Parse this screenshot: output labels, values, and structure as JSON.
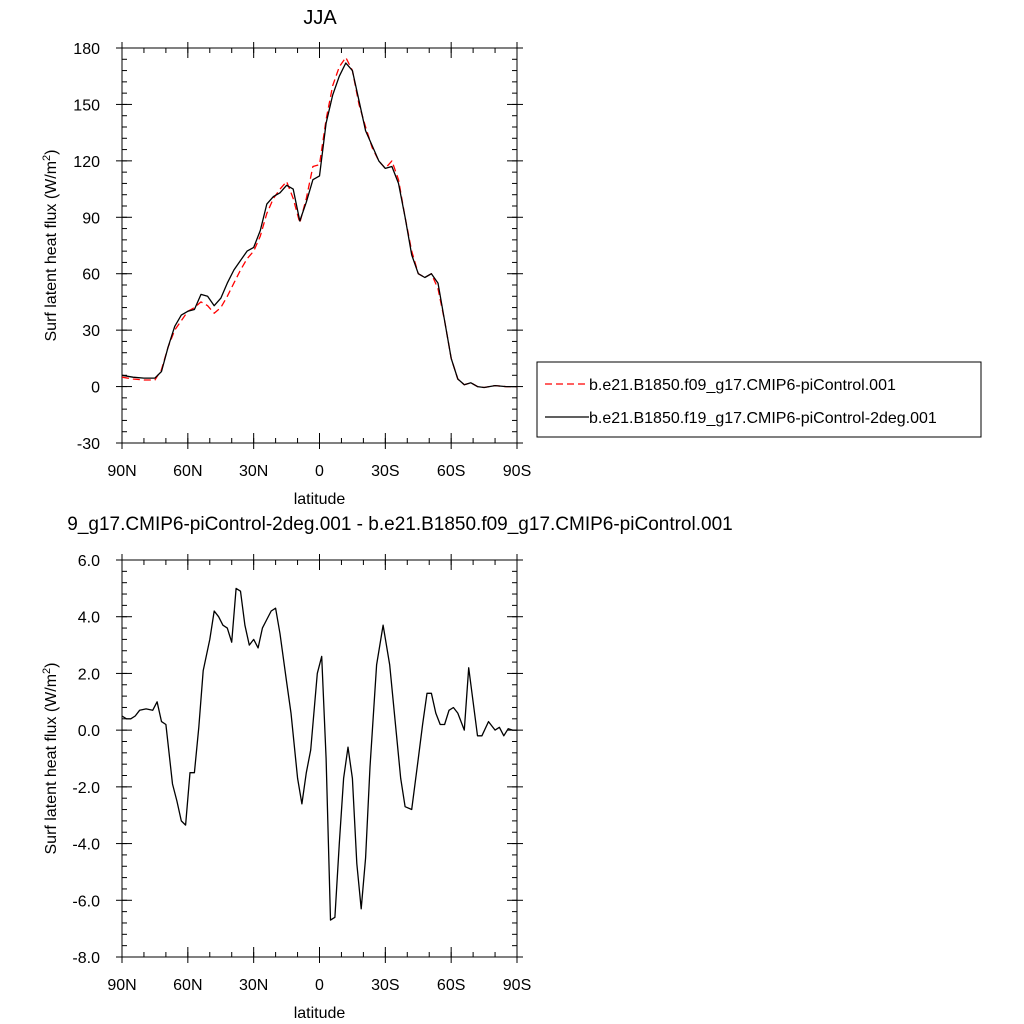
{
  "chart_data": [
    {
      "type": "line",
      "title": "JJA",
      "xlabel": "latitude",
      "ylabel": "Surf latent heat flux (W/m²)",
      "ylabel_text": "Surf latent heat flux (W/m",
      "ylabel_sup": "2",
      "ylabel_close": ")",
      "xlim": [
        90,
        -90
      ],
      "ylim": [
        -30,
        180
      ],
      "xticks": [
        {
          "value": 90,
          "label": "90N"
        },
        {
          "value": 60,
          "label": "60N"
        },
        {
          "value": 30,
          "label": "30N"
        },
        {
          "value": 0,
          "label": "0"
        },
        {
          "value": -30,
          "label": "30S"
        },
        {
          "value": -60,
          "label": "60S"
        },
        {
          "value": -90,
          "label": "90S"
        }
      ],
      "yticks": [
        {
          "value": -30,
          "label": "-30"
        },
        {
          "value": 0,
          "label": "0"
        },
        {
          "value": 30,
          "label": "30"
        },
        {
          "value": 60,
          "label": "60"
        },
        {
          "value": 90,
          "label": "90"
        },
        {
          "value": 120,
          "label": "120"
        },
        {
          "value": 150,
          "label": "150"
        },
        {
          "value": 180,
          "label": "180"
        }
      ],
      "legend_position": "right",
      "series": [
        {
          "name": "b.e21.B1850.f09_g17.CMIP6-piControl.001",
          "color": "#ff0000",
          "dash": true,
          "x": [
            90,
            85,
            80,
            75,
            72,
            69,
            66,
            63,
            60,
            57,
            54,
            51,
            48,
            45,
            42,
            39,
            36,
            33,
            30,
            27,
            24,
            21,
            18,
            15,
            12,
            9,
            6,
            3,
            0,
            -3,
            -6,
            -9,
            -12,
            -15,
            -18,
            -21,
            -24,
            -27,
            -30,
            -33,
            -36,
            -39,
            -42,
            -45,
            -48,
            -51,
            -54,
            -57,
            -60,
            -63,
            -66,
            -69,
            -72,
            -75,
            -80,
            -85,
            -90
          ],
          "y": [
            5,
            4,
            3.5,
            3.5,
            9,
            21,
            30,
            35,
            40,
            42,
            45,
            43,
            39,
            42,
            48,
            55,
            62,
            68,
            72,
            80,
            92,
            100,
            105,
            109,
            100,
            87,
            100,
            117,
            118,
            142,
            160,
            170,
            175,
            168,
            150,
            138,
            127,
            120,
            116,
            120,
            110,
            90,
            72,
            60,
            58,
            60,
            52,
            35,
            15,
            4,
            1,
            2,
            0,
            -0.5,
            0.5,
            0,
            0
          ]
        },
        {
          "name": "b.e21.B1850.f19_g17.CMIP6-piControl-2deg.001",
          "color": "#000000",
          "dash": false,
          "x": [
            90,
            85,
            80,
            75,
            72,
            69,
            66,
            63,
            60,
            57,
            54,
            51,
            48,
            45,
            42,
            39,
            36,
            33,
            30,
            27,
            24,
            21,
            18,
            15,
            12,
            9,
            6,
            3,
            0,
            -3,
            -6,
            -9,
            -12,
            -15,
            -18,
            -21,
            -24,
            -27,
            -30,
            -33,
            -36,
            -39,
            -42,
            -45,
            -48,
            -51,
            -54,
            -57,
            -60,
            -63,
            -66,
            -69,
            -72,
            -75,
            -80,
            -85,
            -90
          ],
          "y": [
            6,
            5,
            4.5,
            4.5,
            8,
            21,
            32,
            38,
            40,
            41,
            49,
            48,
            43,
            47,
            55,
            62,
            67,
            72,
            74,
            83,
            97,
            101,
            103,
            107,
            105,
            88,
            98,
            110,
            112,
            140,
            155,
            165,
            172,
            168,
            152,
            136,
            128,
            120,
            116,
            117,
            108,
            90,
            70,
            60,
            58,
            60,
            55,
            35,
            15,
            4,
            1,
            2,
            0,
            -0.5,
            0.5,
            0,
            0
          ]
        }
      ]
    },
    {
      "type": "line",
      "title": "9_g17.CMIP6-piControl-2deg.001 - b.e21.B1850.f09_g17.CMIP6-piControl.001",
      "xlabel": "latitude",
      "ylabel": "Surf latent heat flux (W/m²)",
      "ylabel_text": "Surf latent heat flux (W/m",
      "ylabel_sup": "2",
      "ylabel_close": ")",
      "xlim": [
        90,
        -90
      ],
      "ylim": [
        -8,
        6
      ],
      "xticks": [
        {
          "value": 90,
          "label": "90N"
        },
        {
          "value": 60,
          "label": "60N"
        },
        {
          "value": 30,
          "label": "30N"
        },
        {
          "value": 0,
          "label": "0"
        },
        {
          "value": -30,
          "label": "30S"
        },
        {
          "value": -60,
          "label": "60S"
        },
        {
          "value": -90,
          "label": "90S"
        }
      ],
      "yticks": [
        {
          "value": -8,
          "label": "-8.0"
        },
        {
          "value": -6,
          "label": "-6.0"
        },
        {
          "value": -4,
          "label": "-4.0"
        },
        {
          "value": -2,
          "label": "-2.0"
        },
        {
          "value": 0,
          "label": "0.0"
        },
        {
          "value": 2,
          "label": "2.0"
        },
        {
          "value": 4,
          "label": "4.0"
        },
        {
          "value": 6,
          "label": "6.0"
        }
      ],
      "series": [
        {
          "color": "#000000",
          "dash": false,
          "x": [
            90,
            88,
            86,
            84,
            82,
            79,
            76,
            74,
            72,
            70,
            67,
            65,
            63,
            61,
            59,
            57,
            55,
            53,
            50,
            48,
            46,
            44,
            42,
            40,
            38,
            36,
            34,
            32,
            30,
            28,
            26,
            24,
            22,
            20,
            18,
            15,
            13,
            10,
            8,
            6,
            4,
            1,
            -1,
            -3,
            -5,
            -7,
            -9,
            -11,
            -13,
            -15,
            -17,
            -19,
            -21,
            -23,
            -26,
            -29,
            -32,
            -35,
            -37,
            -39,
            -42,
            -45,
            -47,
            -49,
            -51,
            -53,
            -55,
            -57,
            -59,
            -61,
            -63,
            -66,
            -68,
            -70,
            -72,
            -74,
            -77,
            -80,
            -82,
            -84,
            -86,
            -88,
            -90
          ],
          "y": [
            0.5,
            0.4,
            0.4,
            0.5,
            0.7,
            0.75,
            0.7,
            1.0,
            0.3,
            0.2,
            -1.9,
            -2.5,
            -3.2,
            -3.35,
            -1.5,
            -1.5,
            0.1,
            2.1,
            3.2,
            4.2,
            4.0,
            3.7,
            3.6,
            3.1,
            5.0,
            4.9,
            3.7,
            3.0,
            3.2,
            2.9,
            3.6,
            3.9,
            4.2,
            4.3,
            3.4,
            1.7,
            0.6,
            -1.7,
            -2.6,
            -1.5,
            -0.7,
            2.0,
            2.6,
            -1.0,
            -6.7,
            -6.6,
            -4.0,
            -1.7,
            -0.6,
            -1.7,
            -4.7,
            -6.3,
            -4.5,
            -1.3,
            2.3,
            3.7,
            2.3,
            -0.1,
            -1.7,
            -2.7,
            -2.8,
            -1.0,
            0.2,
            1.3,
            1.3,
            0.6,
            0.2,
            0.2,
            0.7,
            0.8,
            0.6,
            0.0,
            2.2,
            1.0,
            -0.2,
            -0.2,
            0.3,
            0.0,
            0.1,
            -0.2,
            0.05,
            0.0,
            0.0
          ]
        }
      ]
    }
  ]
}
